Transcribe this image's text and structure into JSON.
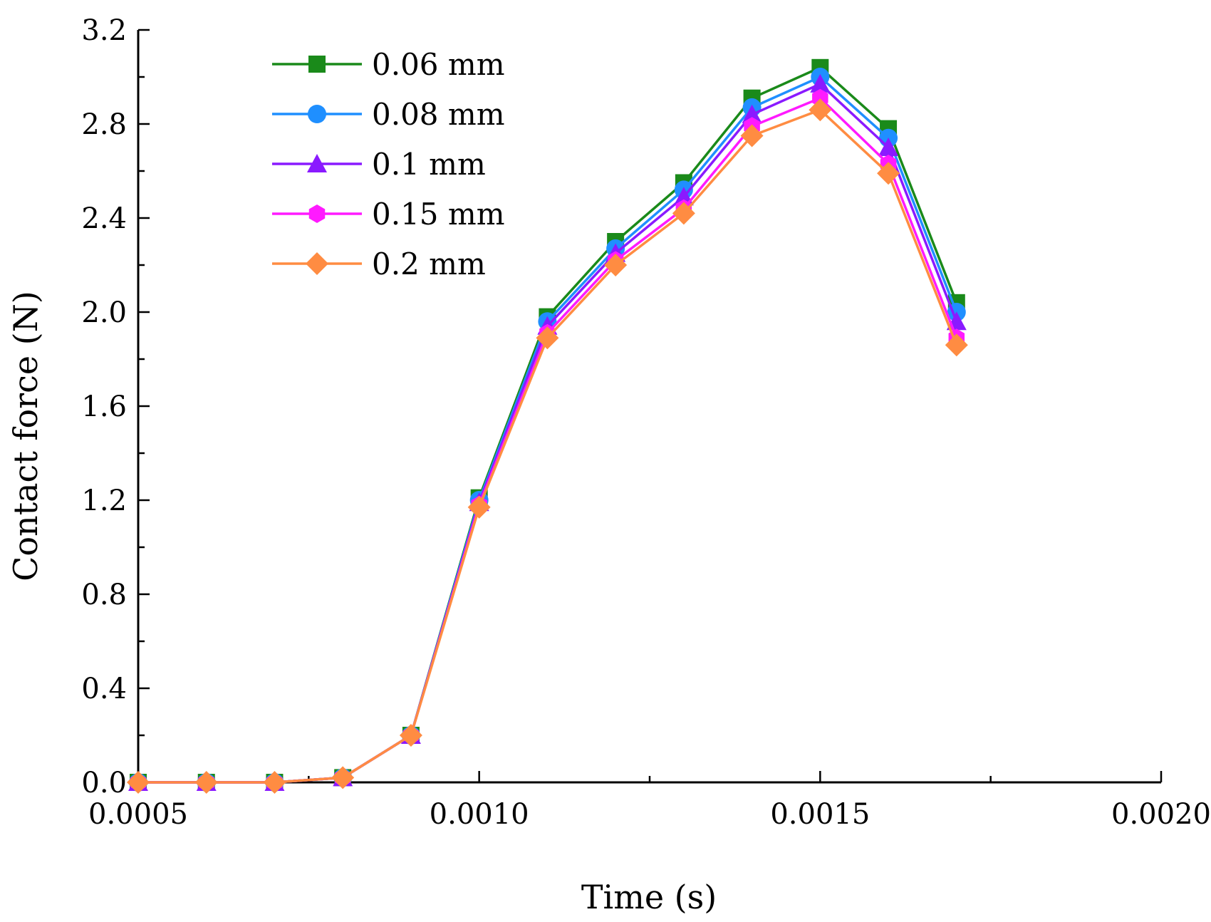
{
  "chart_data": {
    "type": "line",
    "title": "",
    "xlabel": "Time (s)",
    "ylabel": "Contact force (N)",
    "xlim": [
      0.0005,
      0.002
    ],
    "ylim": [
      0.0,
      3.2
    ],
    "xticks": [
      0.0005,
      0.001,
      0.0015,
      0.002
    ],
    "xtick_labels": [
      "0.0005",
      "0.0010",
      "0.0015",
      "0.0020"
    ],
    "yticks": [
      0.0,
      0.4,
      0.8,
      1.2,
      1.6,
      2.0,
      2.4,
      2.8,
      3.2
    ],
    "ytick_labels": [
      "0.0",
      "0.4",
      "0.8",
      "1.2",
      "1.6",
      "2.0",
      "2.4",
      "2.8",
      "3.2"
    ],
    "grid": false,
    "legend_position": "top-left",
    "x": [
      0.0005,
      0.0006,
      0.0007,
      0.0008,
      0.0009,
      0.001,
      0.0011,
      0.0012,
      0.0013,
      0.0014,
      0.0015,
      0.0016,
      0.0017
    ],
    "series": [
      {
        "name": "0.06 mm",
        "color": "#1a8a1a",
        "marker": "square",
        "values": [
          0.0,
          0.0,
          0.0,
          0.02,
          0.2,
          1.21,
          1.98,
          2.3,
          2.55,
          2.91,
          3.04,
          2.78,
          2.04
        ]
      },
      {
        "name": "0.08 mm",
        "color": "#1f8fff",
        "marker": "circle",
        "values": [
          0.0,
          0.0,
          0.0,
          0.02,
          0.2,
          1.2,
          1.96,
          2.27,
          2.52,
          2.87,
          3.0,
          2.74,
          2.0
        ]
      },
      {
        "name": "0.1 mm",
        "color": "#8a1aff",
        "marker": "triangle",
        "values": [
          0.0,
          0.0,
          0.0,
          0.02,
          0.2,
          1.19,
          1.94,
          2.25,
          2.49,
          2.84,
          2.97,
          2.7,
          1.96
        ]
      },
      {
        "name": "0.15 mm",
        "color": "#ff1aff",
        "marker": "hexagon",
        "values": [
          0.0,
          0.0,
          0.0,
          0.02,
          0.2,
          1.18,
          1.91,
          2.22,
          2.44,
          2.79,
          2.91,
          2.63,
          1.89
        ]
      },
      {
        "name": "0.2 mm",
        "color": "#ff8c42",
        "marker": "diamond",
        "values": [
          0.0,
          0.0,
          0.0,
          0.02,
          0.2,
          1.17,
          1.89,
          2.2,
          2.42,
          2.75,
          2.86,
          2.59,
          1.86
        ]
      }
    ]
  }
}
